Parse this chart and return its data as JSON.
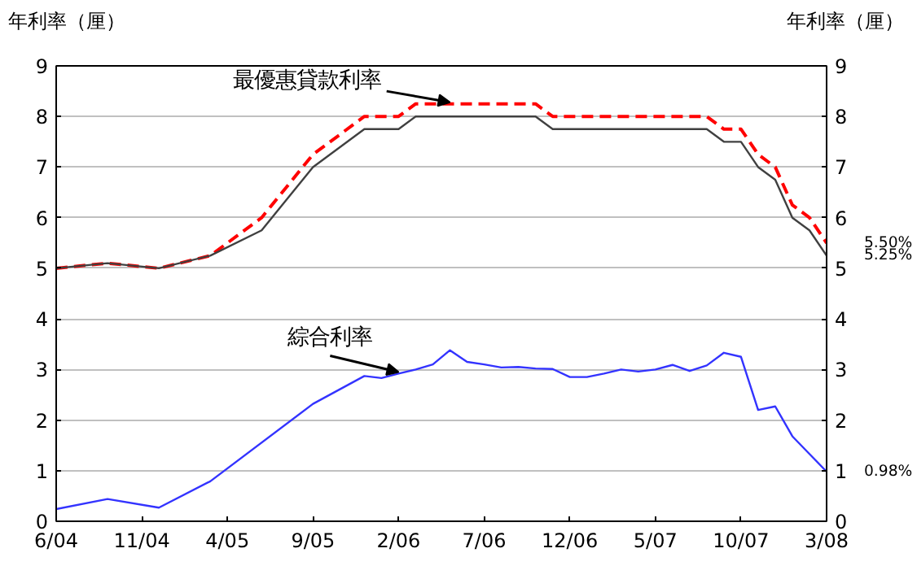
{
  "chart_data": {
    "type": "line",
    "ylabel": "年利率（厘）",
    "y2label": "年利率（厘）",
    "xlim": [
      "2004-06",
      "2008-03"
    ],
    "xticks": [
      {
        "value": "2004-06",
        "label": "6/04"
      },
      {
        "value": "2004-11",
        "label": "11/04"
      },
      {
        "value": "2005-04",
        "label": "4/05"
      },
      {
        "value": "2005-09",
        "label": "9/05"
      },
      {
        "value": "2006-02",
        "label": "2/06"
      },
      {
        "value": "2006-07",
        "label": "7/06"
      },
      {
        "value": "2006-12",
        "label": "12/06"
      },
      {
        "value": "2007-05",
        "label": "5/07"
      },
      {
        "value": "2007-10",
        "label": "10/07"
      },
      {
        "value": "2008-03",
        "label": "3/08"
      }
    ],
    "ylim": [
      0,
      9
    ],
    "yticks": [
      0,
      1,
      2,
      3,
      4,
      5,
      6,
      7,
      8,
      9
    ],
    "y2lim": [
      0,
      9
    ],
    "y2ticks": [
      0,
      1,
      2,
      3,
      4,
      5,
      6,
      7,
      8,
      9
    ],
    "grid": "y",
    "series": [
      {
        "color": "#ff0000",
        "line_style": "dashed",
        "x": [
          "2004-06",
          "2004-09",
          "2004-12",
          "2005-03",
          "2005-06",
          "2005-09",
          "2005-12",
          "2006-02",
          "2006-03",
          "2006-10",
          "2006-11",
          "2007-08",
          "2007-09",
          "2007-10",
          "2007-11",
          "2007-12",
          "2008-01",
          "2008-02",
          "2008-03"
        ],
        "values": [
          5.0,
          5.1,
          5.0,
          5.25,
          6.0,
          7.25,
          8.0,
          8.0,
          8.25,
          8.25,
          8.0,
          8.0,
          7.75,
          7.75,
          7.25,
          7.0,
          6.25,
          6.0,
          5.5
        ]
      },
      {
        "color": "#404040",
        "line_style": "solid",
        "x": [
          "2004-06",
          "2004-09",
          "2004-12",
          "2005-03",
          "2005-06",
          "2005-09",
          "2005-12",
          "2006-02",
          "2006-03",
          "2006-10",
          "2006-11",
          "2007-08",
          "2007-09",
          "2007-10",
          "2007-11",
          "2007-12",
          "2008-01",
          "2008-02",
          "2008-03"
        ],
        "values": [
          5.0,
          5.1,
          5.0,
          5.25,
          5.75,
          7.0,
          7.75,
          7.75,
          8.0,
          8.0,
          7.75,
          7.75,
          7.5,
          7.5,
          7.0,
          6.75,
          6.0,
          5.75,
          5.25
        ]
      },
      {
        "color": "#3333ff",
        "line_style": "solid",
        "x": [
          "2004-06",
          "2004-09",
          "2004-12",
          "2005-03",
          "2005-09",
          "2005-12",
          "2006-01",
          "2006-02",
          "2006-03",
          "2006-04",
          "2006-05",
          "2006-06",
          "2006-07",
          "2006-08",
          "2006-09",
          "2006-10",
          "2006-11",
          "2006-12",
          "2007-01",
          "2007-02",
          "2007-03",
          "2007-04",
          "2007-05",
          "2007-06",
          "2007-07",
          "2007-08",
          "2007-09",
          "2007-10",
          "2007-11",
          "2007-12",
          "2008-01",
          "2008-02",
          "2008-03"
        ],
        "values": [
          0.24,
          0.44,
          0.27,
          0.79,
          2.32,
          2.87,
          2.83,
          2.92,
          3.0,
          3.1,
          3.38,
          3.15,
          3.1,
          3.04,
          3.05,
          3.02,
          3.01,
          2.85,
          2.85,
          2.92,
          3.0,
          2.96,
          3.0,
          3.09,
          2.97,
          3.08,
          3.33,
          3.25,
          2.2,
          2.27,
          1.68,
          1.33,
          0.98
        ]
      }
    ],
    "annotations": [
      {
        "text": "最優惠貸款利率",
        "x": "2006-05",
        "y": 8.25
      },
      {
        "text": "綜合利率",
        "x": "2006-02",
        "y": 2.92
      },
      {
        "text": "5.50%",
        "x": "2008-03",
        "y": 5.5
      },
      {
        "text": "5.25%",
        "x": "2008-03",
        "y": 5.25
      },
      {
        "text": "0.98%",
        "x": "2008-03",
        "y": 0.98
      }
    ]
  }
}
